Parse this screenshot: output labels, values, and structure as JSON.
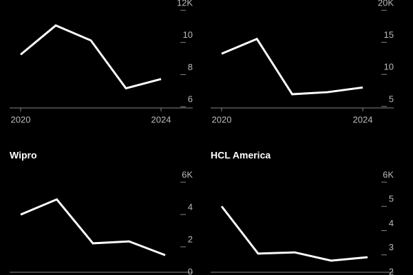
{
  "chart_data": [
    {
      "type": "line",
      "x": [
        2020,
        2021,
        2022,
        2023,
        2024
      ],
      "series": [
        {
          "color": "#ffffff",
          "values": [
            8.82,
            10.63,
            9.7,
            6.72,
            7.3
          ]
        }
      ],
      "xlim": [
        2020,
        2024
      ],
      "xticks": [
        2020,
        2024
      ],
      "ylim": [
        5.5,
        12
      ],
      "yticks": [
        6,
        8,
        10,
        {
          "value": 12,
          "label": "12K"
        }
      ]
    },
    {
      "type": "line",
      "x": [
        2020,
        2021,
        2022,
        2023,
        2024
      ],
      "series": [
        {
          "color": "#ffffff",
          "values": [
            12.16,
            14.47,
            5.84,
            6.16,
            6.89
          ]
        }
      ],
      "xlim": [
        2020,
        2024
      ],
      "xticks": [
        2020,
        2024
      ],
      "ylim": [
        3.7,
        20
      ],
      "yticks": [
        5,
        10,
        15,
        {
          "value": 20,
          "label": "20K"
        }
      ]
    },
    {
      "type": "line",
      "title": "Wipro",
      "x": [
        2020,
        2021,
        2022,
        2023,
        2024
      ],
      "series": [
        {
          "color": "#ffffff",
          "values": [
            3.57,
            4.51,
            1.79,
            1.91,
            1.06
          ]
        }
      ],
      "xlim": [
        2020,
        2024
      ],
      "ylim": [
        0,
        6
      ],
      "yticks": [
        0,
        2,
        4,
        {
          "value": 6,
          "label": "6K"
        }
      ]
    },
    {
      "type": "line",
      "title": "HCL America",
      "x": [
        2020,
        2021,
        2022,
        2023,
        2024
      ],
      "series": [
        {
          "color": "#ffffff",
          "values": [
            4.72,
            2.77,
            2.82,
            2.48,
            2.62
          ]
        }
      ],
      "xlim": [
        2020,
        2024
      ],
      "ylim": [
        2,
        6
      ],
      "yticks": [
        2,
        3,
        4,
        5,
        {
          "value": 6,
          "label": "6K"
        }
      ]
    }
  ]
}
